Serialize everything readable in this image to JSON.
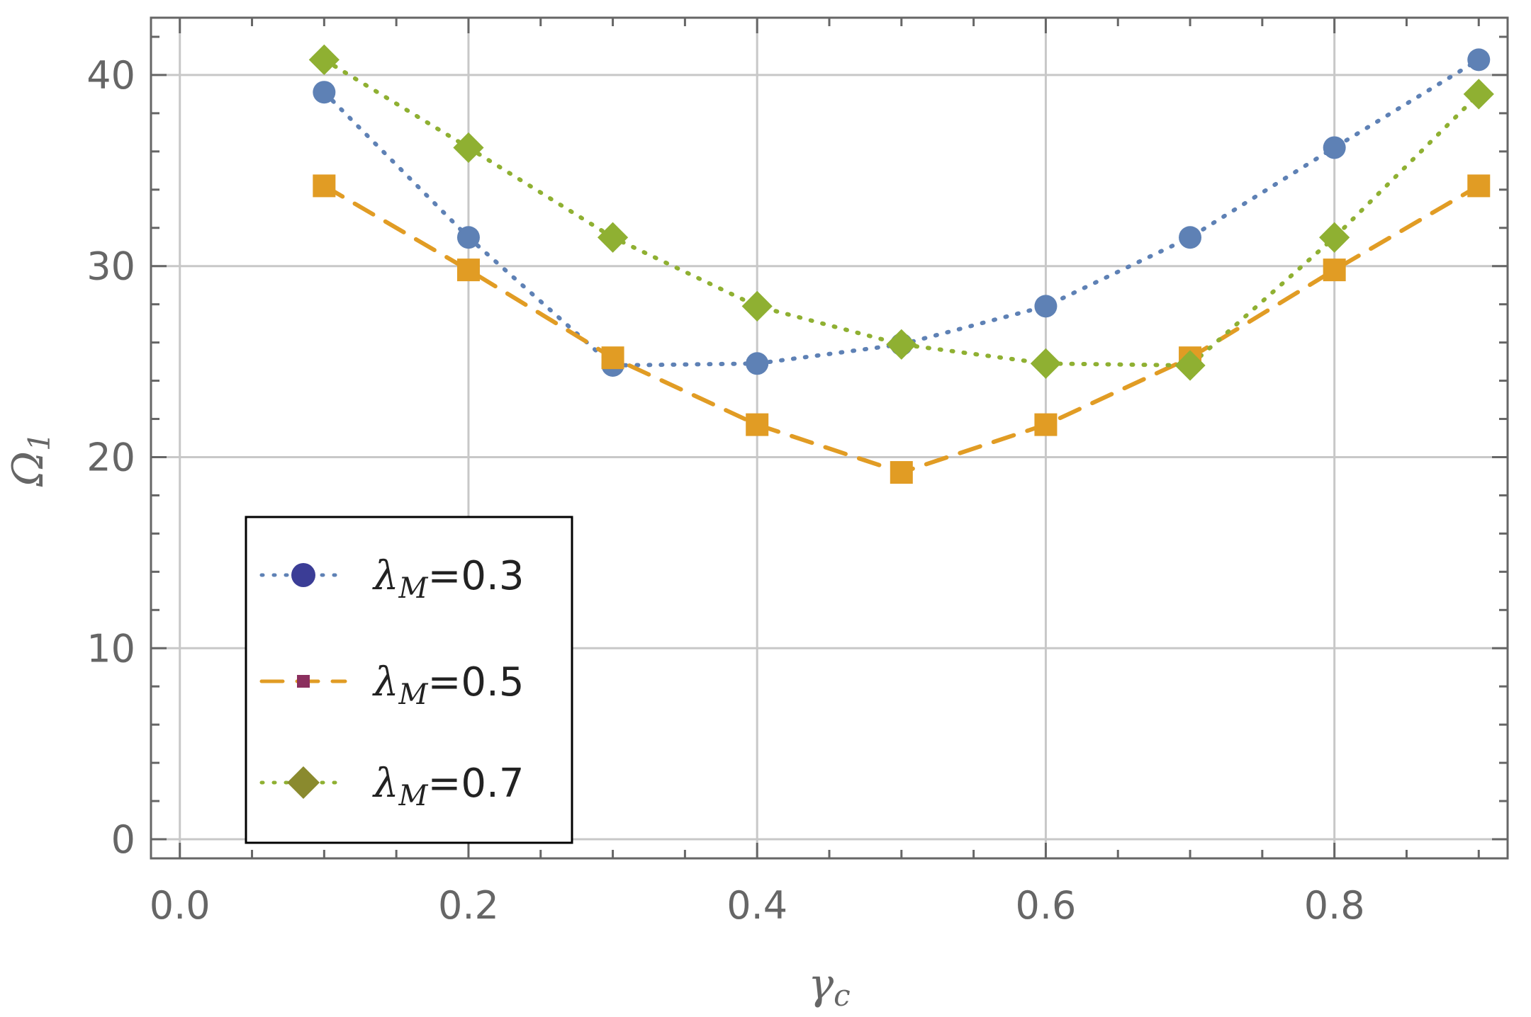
{
  "chart_data": {
    "type": "line",
    "xlabel": {
      "main": "γ",
      "sub": "c"
    },
    "ylabel": {
      "main": "Ω",
      "sub": "1"
    },
    "xlim": [
      -0.02,
      0.92
    ],
    "ylim": [
      -1,
      43
    ],
    "x_ticks": [
      {
        "value": 0.0,
        "label": "0.0"
      },
      {
        "value": 0.2,
        "label": "0.2"
      },
      {
        "value": 0.4,
        "label": "0.4"
      },
      {
        "value": 0.6,
        "label": "0.6"
      },
      {
        "value": 0.8,
        "label": "0.8"
      }
    ],
    "y_ticks": [
      {
        "value": 0,
        "label": "0"
      },
      {
        "value": 10,
        "label": "10"
      },
      {
        "value": 20,
        "label": "20"
      },
      {
        "value": 30,
        "label": "30"
      },
      {
        "value": 40,
        "label": "40"
      }
    ],
    "x_minor_step": 0.05,
    "y_minor_step": 2,
    "grid": true,
    "legend_position": "bottom-left",
    "x": [
      0.1,
      0.2,
      0.3,
      0.4,
      0.5,
      0.6,
      0.7,
      0.8,
      0.9
    ],
    "series": [
      {
        "name": "λ_M=0.3",
        "legend": {
          "sym": "λ",
          "sub": "M",
          "rest": "=0.3"
        },
        "values": [
          39.1,
          31.5,
          24.8,
          24.9,
          25.9,
          27.9,
          31.5,
          36.2,
          40.8
        ],
        "color": "#5E81B5",
        "legend_marker_color": "#3B3D96",
        "marker": "circle",
        "dash": "dotted"
      },
      {
        "name": "λ_M=0.5",
        "legend": {
          "sym": "λ",
          "sub": "M",
          "rest": "=0.5"
        },
        "values": [
          34.2,
          29.8,
          25.2,
          21.7,
          19.2,
          21.7,
          25.2,
          29.8,
          34.2
        ],
        "color": "#E19C24",
        "legend_marker_color": "#8B2F5E",
        "marker": "square",
        "dash": "dashed"
      },
      {
        "name": "λ_M=0.7",
        "legend": {
          "sym": "λ",
          "sub": "M",
          "rest": "=0.7"
        },
        "values": [
          40.8,
          36.2,
          31.5,
          27.9,
          25.9,
          24.9,
          24.8,
          31.5,
          39.0
        ],
        "color": "#8FB032",
        "legend_marker_color": "#8A8A2E",
        "marker": "diamond",
        "dash": "dotted"
      }
    ]
  }
}
